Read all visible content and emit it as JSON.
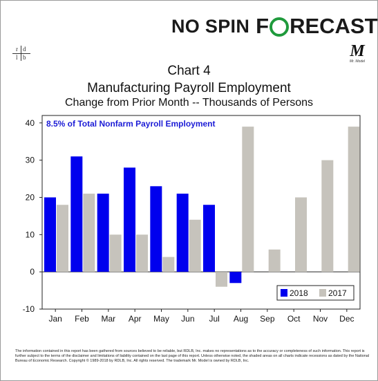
{
  "brand": {
    "part1": "NO SPIN",
    "part2_before_o": "F",
    "part2_after_o": "RECAST",
    "sub_logo": "M",
    "sub_logo_caption": "Mr. Model"
  },
  "header": {
    "logo_letters": [
      "r",
      "d",
      "l",
      "b"
    ]
  },
  "titles": {
    "line1": "Chart 4",
    "line2": "Manufacturing Payroll Employment",
    "line3": "Change from Prior Month -- Thousands of Persons"
  },
  "colors": {
    "series_2018": "#0000ee",
    "series_2017": "#c6c3bc",
    "annotation": "#1c1cd6",
    "brand_green": "#1f9a3c"
  },
  "chart_data": {
    "type": "bar",
    "annotation": "8.5% of Total Nonfarm Payroll Employment",
    "categories": [
      "Jan",
      "Feb",
      "Mar",
      "Apr",
      "May",
      "Jun",
      "Jul",
      "Aug",
      "Sep",
      "Oct",
      "Nov",
      "Dec"
    ],
    "series": [
      {
        "name": "2018",
        "color": "#0000ee",
        "values": [
          20,
          31,
          21,
          28,
          23,
          21,
          18,
          -3,
          null,
          null,
          null,
          null
        ]
      },
      {
        "name": "2017",
        "color": "#c6c3bc",
        "values": [
          18,
          21,
          10,
          10,
          4,
          14,
          -4,
          39,
          6,
          20,
          30,
          39
        ]
      }
    ],
    "ylim": [
      -10,
      42
    ],
    "yticks": [
      -10,
      0,
      10,
      20,
      30,
      40
    ],
    "grid": false,
    "legend_position": "bottom-right"
  },
  "footer": {
    "text": "The information contained in this report has been gathered from sources believed to be reliable, but RDLB, Inc. makes no representations as to the accuracy or completeness of such information. This report is further subject to the terms of the disclaimer and limitations of liability contained on the last page of this report. Unless otherwise noted, the shaded areas on all charts indicate recessions as dated by the National Bureau of Economic Research. Copyright © 1989-2018 by RDLB, Inc. All rights reserved. The trademark Mr. Model is owned by RDLB, Inc."
  }
}
